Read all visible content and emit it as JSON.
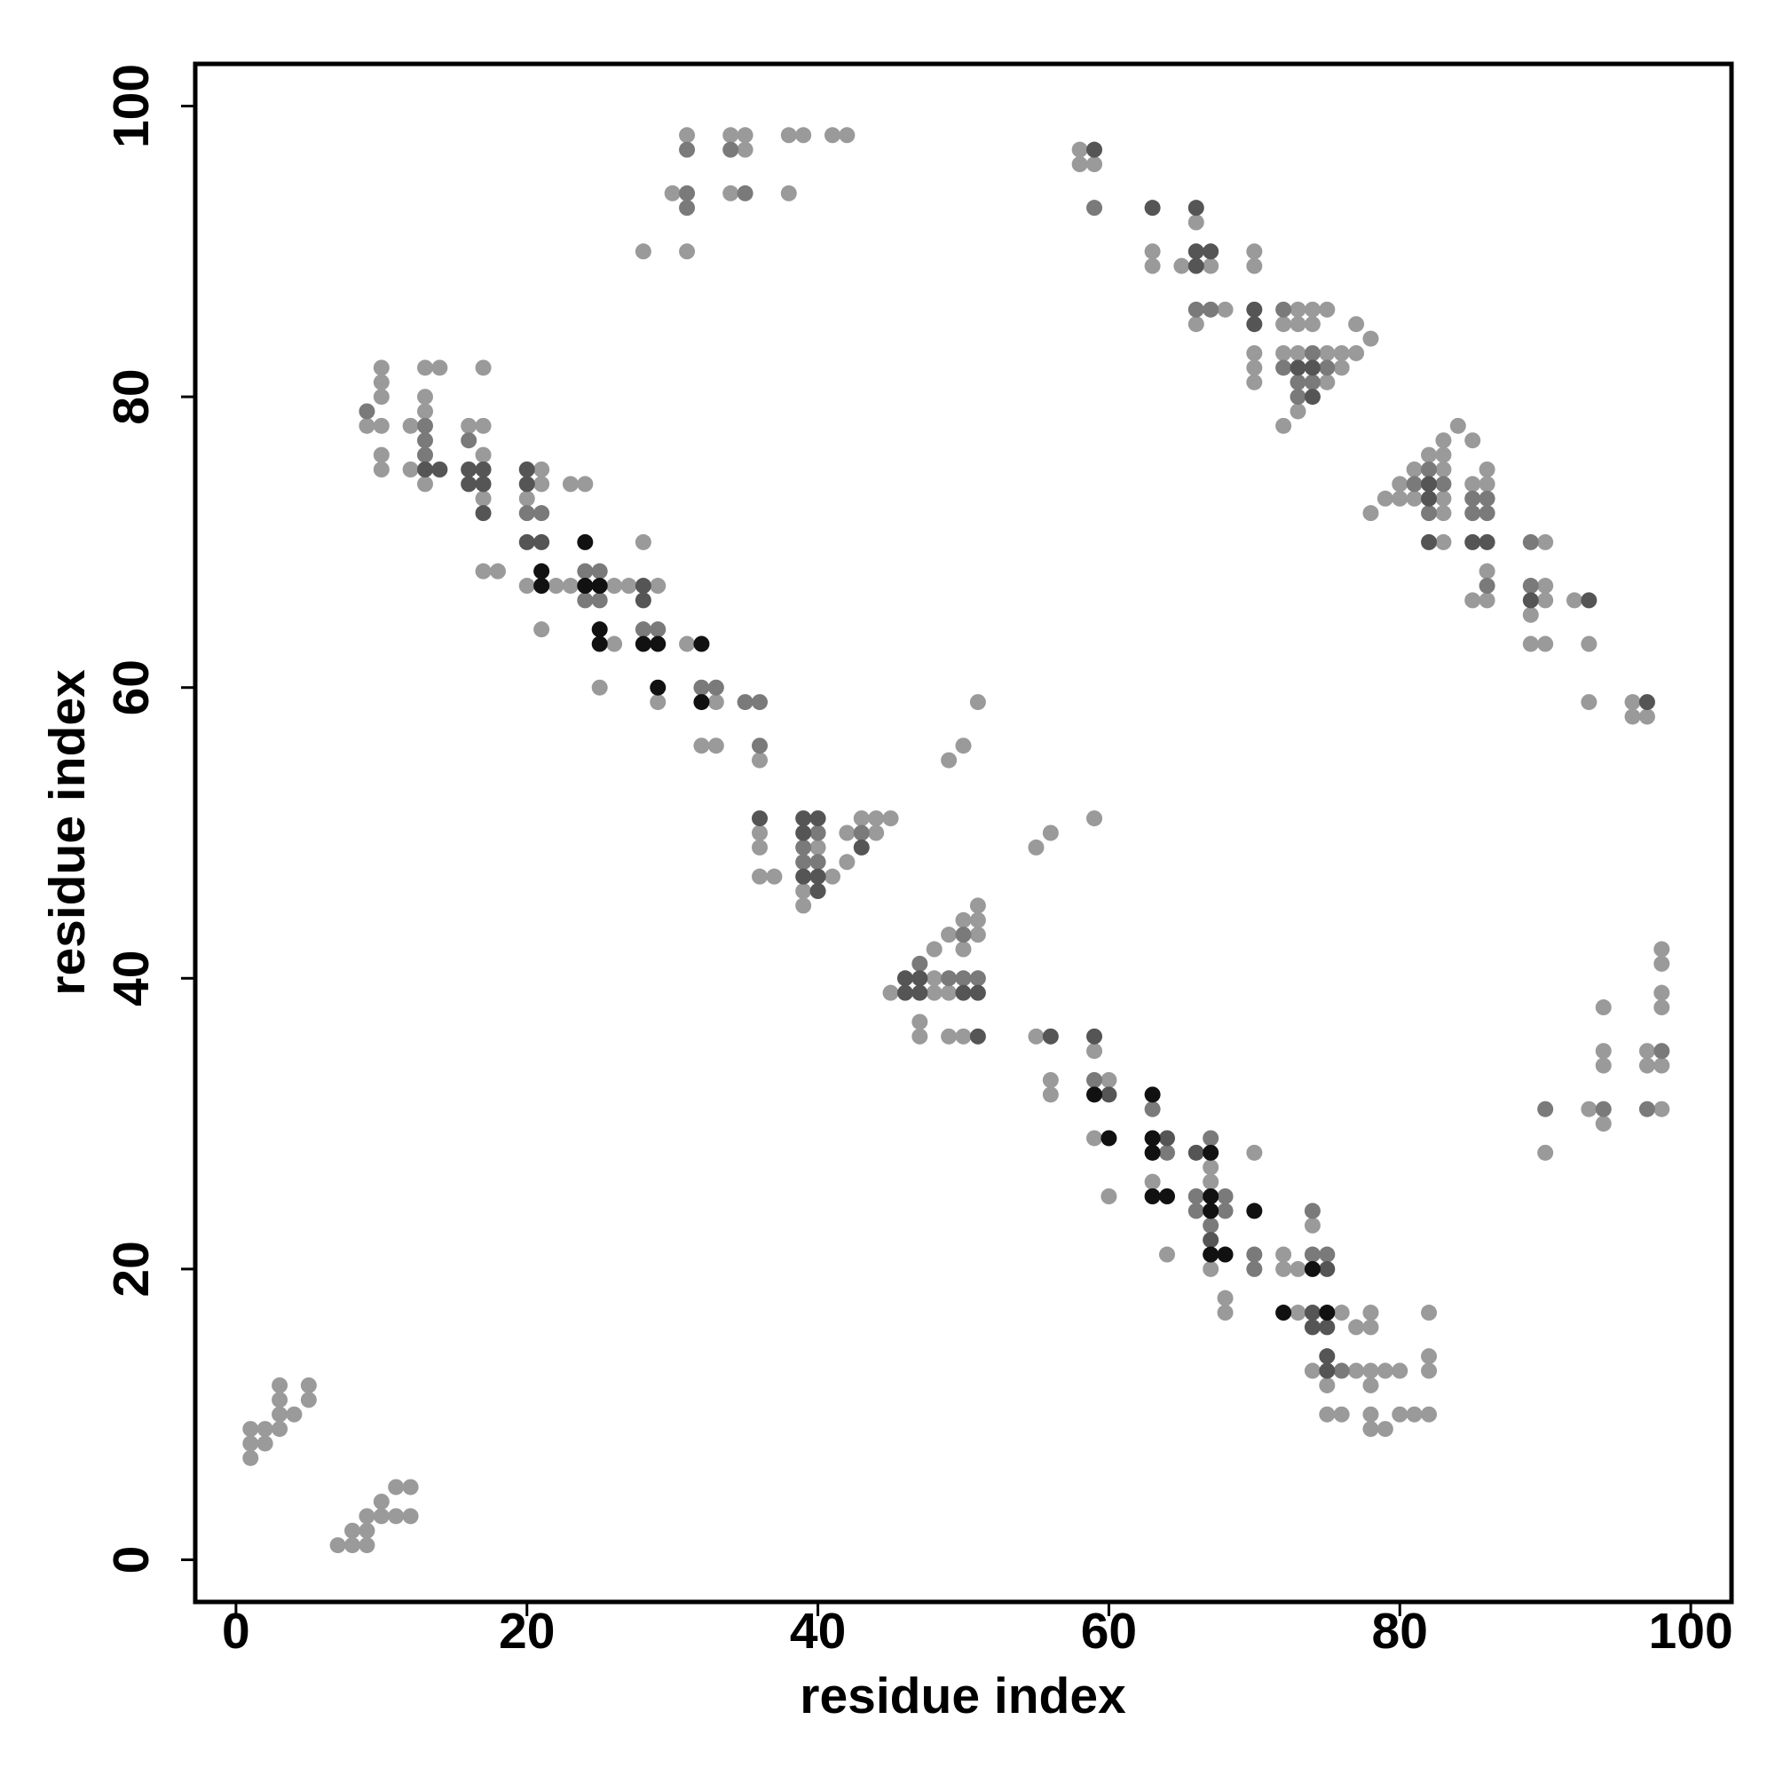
{
  "chart_data": {
    "type": "scatter",
    "x_label": "residue index",
    "y_label": "residue index",
    "xlim": [
      -2.8,
      102.8
    ],
    "ylim": [
      -2.9,
      102.9
    ],
    "xticks": [
      0,
      20,
      40,
      60,
      80,
      100
    ],
    "yticks": [
      0,
      20,
      40,
      60,
      80,
      100
    ],
    "grid": false,
    "series": [
      {
        "color": "#9a9a9a",
        "x": [
          1,
          1,
          1,
          2,
          2,
          3,
          3,
          3,
          3,
          4,
          5,
          5,
          7,
          8,
          8,
          9,
          9,
          9,
          10,
          10,
          11,
          11,
          12,
          12,
          9,
          10,
          10,
          10,
          10,
          10,
          10,
          12,
          12,
          13,
          13,
          13,
          13,
          14,
          16,
          17,
          17,
          17,
          17,
          17,
          18,
          20,
          20,
          21,
          21,
          21,
          22,
          23,
          23,
          24,
          25,
          26,
          26,
          27,
          28,
          29,
          29,
          31,
          32,
          33,
          33,
          36,
          36,
          36,
          36,
          37,
          39,
          39,
          40,
          41,
          42,
          42,
          43,
          44,
          44,
          45,
          45,
          47,
          47,
          48,
          48,
          48,
          49,
          49,
          49,
          50,
          50,
          50,
          51,
          51,
          51,
          49,
          50,
          51,
          55,
          56,
          59,
          55,
          56,
          56,
          59,
          59,
          60,
          60,
          63,
          64,
          67,
          67,
          67,
          68,
          68,
          70,
          72,
          72,
          73,
          73,
          74,
          74,
          75,
          75,
          76,
          76,
          77,
          77,
          78,
          78,
          78,
          78,
          78,
          78,
          79,
          79,
          80,
          80,
          81,
          82,
          82,
          82,
          82,
          28,
          30,
          31,
          31,
          34,
          34,
          35,
          35,
          38,
          38,
          39,
          41,
          42,
          58,
          58,
          59,
          63,
          63,
          65,
          66,
          66,
          67,
          68,
          70,
          70,
          70,
          70,
          70,
          72,
          72,
          72,
          73,
          73,
          73,
          73,
          74,
          74,
          75,
          75,
          75,
          76,
          76,
          77,
          77,
          78,
          78,
          79,
          80,
          80,
          81,
          81,
          82,
          83,
          83,
          83,
          83,
          83,
          83,
          84,
          85,
          85,
          85,
          86,
          86,
          86,
          86,
          89,
          89,
          90,
          90,
          90,
          90,
          92,
          93,
          93,
          96,
          96,
          97,
          90,
          93,
          94,
          94,
          94,
          94,
          97,
          97,
          98,
          98,
          98,
          98,
          98,
          98
        ],
        "values": [
          7,
          8,
          9,
          8,
          9,
          9,
          10,
          11,
          12,
          10,
          11,
          12,
          1,
          1,
          2,
          1,
          2,
          3,
          3,
          4,
          3,
          5,
          3,
          5,
          78,
          76,
          75,
          78,
          80,
          81,
          82,
          75,
          78,
          74,
          79,
          80,
          82,
          82,
          78,
          73,
          76,
          78,
          82,
          68,
          68,
          67,
          73,
          64,
          74,
          75,
          67,
          67,
          74,
          74,
          60,
          63,
          67,
          67,
          70,
          59,
          67,
          63,
          56,
          56,
          59,
          55,
          47,
          49,
          50,
          47,
          45,
          46,
          49,
          47,
          48,
          50,
          51,
          50,
          51,
          51,
          39,
          36,
          37,
          39,
          40,
          42,
          36,
          39,
          43,
          36,
          42,
          44,
          43,
          44,
          45,
          55,
          56,
          59,
          49,
          50,
          51,
          36,
          32,
          33,
          29,
          35,
          25,
          33,
          26,
          21,
          20,
          26,
          27,
          17,
          18,
          28,
          20,
          21,
          17,
          20,
          13,
          23,
          10,
          12,
          10,
          17,
          13,
          16,
          9,
          10,
          12,
          13,
          16,
          17,
          9,
          13,
          10,
          13,
          10,
          10,
          13,
          14,
          17,
          90,
          94,
          90,
          98,
          94,
          98,
          97,
          98,
          94,
          98,
          98,
          98,
          98,
          96,
          97,
          96,
          89,
          90,
          89,
          85,
          92,
          89,
          86,
          81,
          82,
          83,
          89,
          90,
          78,
          83,
          85,
          79,
          83,
          85,
          86,
          85,
          86,
          81,
          83,
          86,
          82,
          83,
          83,
          85,
          84,
          72,
          73,
          73,
          74,
          73,
          75,
          76,
          70,
          72,
          73,
          75,
          76,
          77,
          78,
          66,
          74,
          77,
          66,
          68,
          74,
          75,
          63,
          65,
          63,
          66,
          67,
          70,
          66,
          59,
          63,
          58,
          59,
          58,
          28,
          31,
          30,
          34,
          35,
          38,
          34,
          35,
          31,
          34,
          38,
          39,
          41,
          42
        ]
      },
      {
        "color": "#7a7a7a",
        "x": [
          9,
          13,
          13,
          13,
          16,
          20,
          21,
          24,
          24,
          25,
          25,
          28,
          29,
          32,
          33,
          35,
          36,
          36,
          39,
          39,
          40,
          40,
          43,
          47,
          49,
          50,
          50,
          51,
          59,
          63,
          64,
          66,
          66,
          67,
          67,
          68,
          68,
          70,
          70,
          74,
          74,
          75,
          76,
          31,
          31,
          31,
          34,
          35,
          59,
          66,
          67,
          72,
          72,
          73,
          73,
          74,
          74,
          75,
          81,
          82,
          82,
          83,
          85,
          85,
          86,
          86,
          86,
          89,
          89,
          90,
          94,
          97,
          98
        ],
        "values": [
          79,
          76,
          77,
          78,
          77,
          72,
          72,
          66,
          68,
          66,
          68,
          64,
          64,
          60,
          60,
          59,
          59,
          56,
          49,
          48,
          48,
          50,
          50,
          41,
          40,
          40,
          43,
          40,
          33,
          31,
          28,
          24,
          25,
          29,
          23,
          24,
          25,
          20,
          21,
          21,
          24,
          21,
          13,
          93,
          94,
          97,
          97,
          94,
          93,
          86,
          86,
          82,
          86,
          80,
          81,
          81,
          83,
          82,
          74,
          72,
          75,
          74,
          72,
          73,
          72,
          73,
          67,
          67,
          70,
          31,
          31,
          31,
          35
        ]
      },
      {
        "color": "#555555",
        "x": [
          13,
          14,
          16,
          16,
          17,
          17,
          17,
          20,
          20,
          20,
          21,
          28,
          28,
          36,
          39,
          39,
          39,
          40,
          40,
          40,
          43,
          46,
          46,
          47,
          47,
          50,
          51,
          51,
          56,
          59,
          60,
          64,
          66,
          67,
          74,
          74,
          75,
          75,
          75,
          75,
          73,
          74,
          74,
          82,
          82,
          82,
          85,
          86,
          93,
          89,
          97,
          59,
          66,
          66,
          67,
          70,
          70,
          63,
          66
        ],
        "values": [
          75,
          75,
          75,
          74,
          75,
          74,
          72,
          74,
          75,
          70,
          70,
          67,
          66,
          51,
          51,
          50,
          47,
          46,
          47,
          51,
          49,
          39,
          40,
          39,
          40,
          39,
          39,
          36,
          36,
          36,
          32,
          29,
          28,
          22,
          16,
          17,
          20,
          16,
          13,
          14,
          82,
          82,
          80,
          74,
          73,
          70,
          70,
          70,
          66,
          66,
          59,
          97,
          89,
          90,
          90,
          86,
          85,
          93,
          93
        ]
      },
      {
        "color": "#111111",
        "x": [
          21,
          21,
          24,
          24,
          25,
          25,
          25,
          28,
          29,
          29,
          32,
          32,
          59,
          60,
          63,
          63,
          63,
          63,
          64,
          67,
          67,
          67,
          67,
          68,
          70,
          72,
          74,
          75
        ],
        "values": [
          67,
          68,
          70,
          67,
          67,
          64,
          63,
          63,
          63,
          60,
          63,
          59,
          32,
          29,
          32,
          29,
          28,
          25,
          25,
          28,
          25,
          24,
          21,
          21,
          24,
          17,
          20,
          17
        ]
      }
    ]
  }
}
